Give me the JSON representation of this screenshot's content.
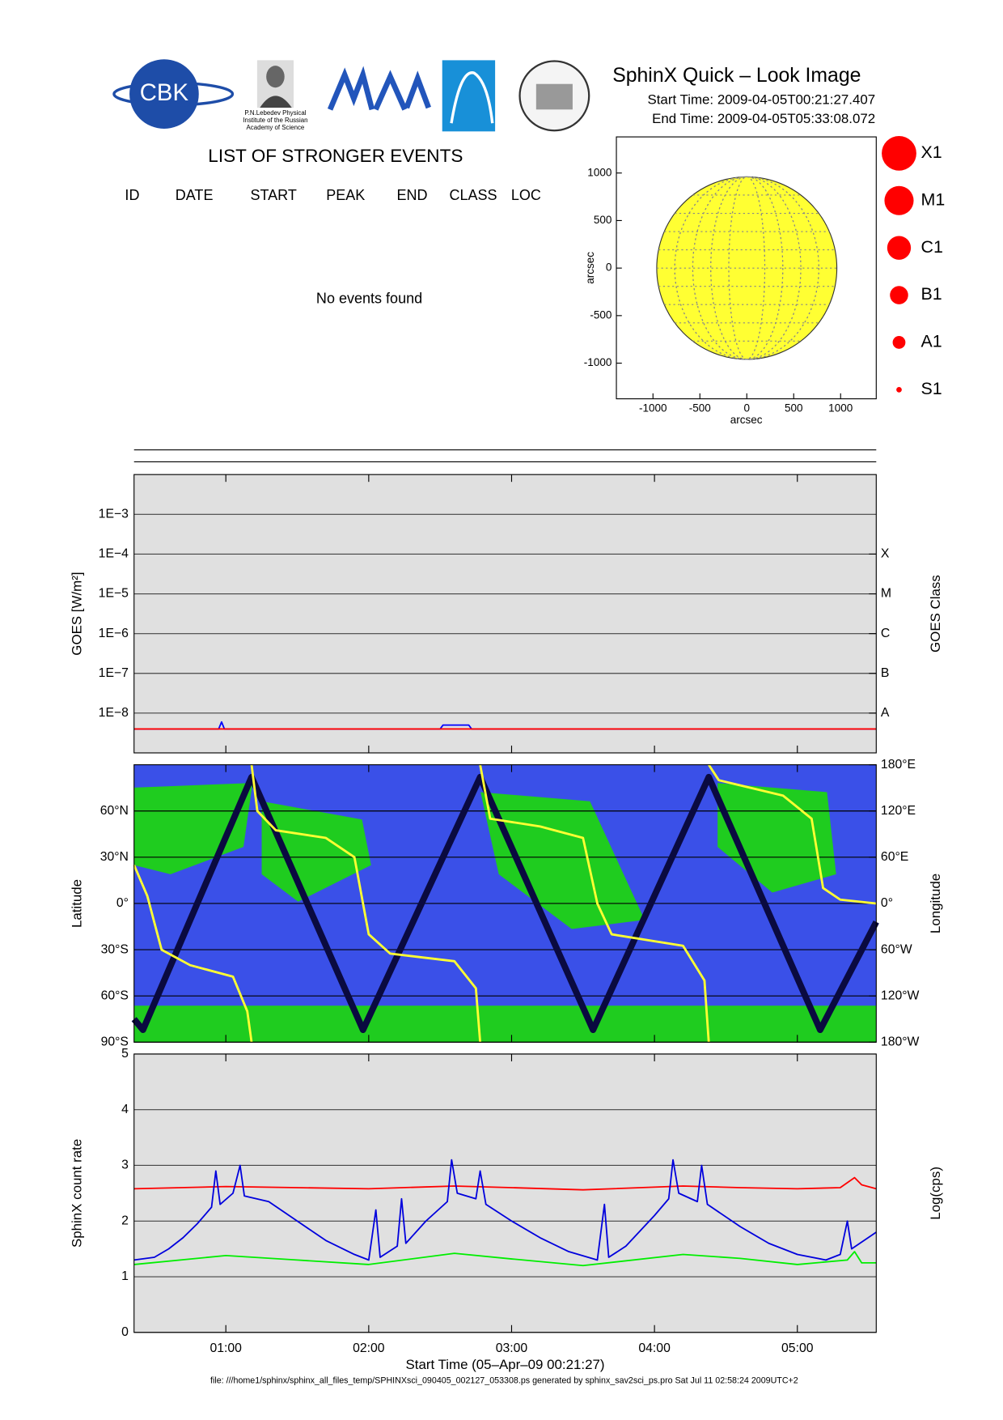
{
  "header": {
    "logo_text": "CBK",
    "institute": [
      "P.N.Lebedev Physical",
      "Institute of the Russian",
      "Academy of Science"
    ],
    "title": "SphinX Quick – Look Image",
    "start_time": "Start Time: 2009-04-05T00:21:27.407",
    "end_time": "End Time: 2009-04-05T05:33:08.072"
  },
  "events": {
    "title": "LIST OF STRONGER EVENTS",
    "columns": [
      "ID",
      "DATE",
      "START",
      "PEAK",
      "END",
      "CLASS",
      "LOC"
    ],
    "message": "No events found"
  },
  "chart_data": [
    {
      "type": "disk",
      "xlabel": "arcsec",
      "ylabel": "arcsec",
      "xlim": [
        -1390,
        1380
      ],
      "ylim": [
        -1375,
        1380
      ],
      "xticks": [
        -1000,
        -500,
        0,
        500,
        1000
      ],
      "yticks": [
        -1000,
        -500,
        0,
        500,
        1000
      ],
      "disk_radius": 960,
      "color": "#ffff33",
      "classes": [
        "X1",
        "M1",
        "C1",
        "B1",
        "A1",
        "S1"
      ],
      "class_color": "#ff0000"
    },
    {
      "type": "line",
      "log_y": true,
      "ylabel": "GOES [W/m²]",
      "y2label": "GOES Class",
      "grid": true,
      "xlim": [
        0.3575,
        5.5522
      ],
      "xticks": [
        1,
        2,
        3,
        4,
        5
      ],
      "ylim": [
        1e-09,
        0.01
      ],
      "yticks": [
        {
          "value": 1e-08,
          "label": "1E−8"
        },
        {
          "value": 1e-07,
          "label": "1E−7"
        },
        {
          "value": 1e-06,
          "label": "1E−6"
        },
        {
          "value": 1e-05,
          "label": "1E−5"
        },
        {
          "value": 0.0001,
          "label": "1E−4"
        },
        {
          "value": 0.001,
          "label": "1E−3"
        }
      ],
      "y2ticks": [
        {
          "value": 1e-08,
          "label": "A"
        },
        {
          "value": 1e-07,
          "label": "B"
        },
        {
          "value": 1e-06,
          "label": "C"
        },
        {
          "value": 1e-05,
          "label": "M"
        },
        {
          "value": 0.0001,
          "label": "X"
        }
      ],
      "series": [
        {
          "color": "#0000ff",
          "x": [
            0.3575,
            0.95,
            0.97,
            0.99,
            2.5,
            2.52,
            2.7,
            2.72,
            5.5522
          ],
          "values": [
            4e-09,
            4e-09,
            6e-09,
            4e-09,
            4e-09,
            5e-09,
            5e-09,
            4e-09,
            4e-09
          ]
        },
        {
          "color": "#ff0000",
          "x": [
            0.3575,
            5.5522
          ],
          "values": [
            4e-09,
            4e-09
          ]
        }
      ]
    },
    {
      "type": "map",
      "ylabel": "Latitude",
      "y2label": "Longitude",
      "xlim": [
        0.3575,
        5.5522
      ],
      "xticks": [
        1,
        2,
        3,
        4,
        5
      ],
      "ylim": [
        -90,
        90
      ],
      "yticks": [
        {
          "value": -90,
          "label": "90°S"
        },
        {
          "value": -60,
          "label": "60°S"
        },
        {
          "value": -30,
          "label": "30°S"
        },
        {
          "value": 0,
          "label": "0°"
        },
        {
          "value": 30,
          "label": "30°N"
        },
        {
          "value": 60,
          "label": "60°N"
        }
      ],
      "y2lim": [
        -180,
        180
      ],
      "y2ticks": [
        {
          "value": -180,
          "label": "180°W"
        },
        {
          "value": -120,
          "label": "120°W"
        },
        {
          "value": -60,
          "label": "60°W"
        },
        {
          "value": 0,
          "label": "0°"
        },
        {
          "value": 60,
          "label": "60°E"
        },
        {
          "value": 120,
          "label": "120°E"
        },
        {
          "value": 180,
          "label": "180°E"
        }
      ],
      "sea_color": "#3a50e8",
      "land_color": "#1fcc1f",
      "series": [
        {
          "color": "#0a0a40",
          "x": [
            0.3575,
            0.42,
            1.18,
            1.96,
            2.78,
            3.57,
            4.38,
            5.16,
            5.5522
          ],
          "values": [
            -75,
            -82,
            82,
            -82,
            82,
            -82,
            82,
            -82,
            -12
          ]
        },
        {
          "color": "#ffff33",
          "axis": "y2",
          "x": [
            0.3575,
            0.45,
            0.55,
            0.75,
            1.05,
            1.15,
            1.18,
            null,
            1.18,
            1.22,
            1.35,
            1.7,
            1.9,
            2.0,
            2.15,
            2.6,
            2.75,
            2.78,
            null,
            2.78,
            2.85,
            3.2,
            3.5,
            3.6,
            3.7,
            4.2,
            4.35,
            4.38,
            null,
            4.38,
            4.45,
            4.9,
            5.1,
            5.18,
            5.3,
            5.5522
          ],
          "values": [
            50,
            10,
            -60,
            -80,
            -95,
            -140,
            -180,
            null,
            180,
            120,
            95,
            85,
            60,
            -40,
            -65,
            -75,
            -110,
            -180,
            null,
            180,
            110,
            100,
            85,
            0,
            -40,
            -55,
            -100,
            -180,
            null,
            180,
            160,
            140,
            110,
            20,
            5,
            0
          ]
        }
      ]
    },
    {
      "type": "line",
      "ylabel": "SphinX count rate",
      "y2label": "Log(cps)",
      "xlabel": "Start Time (05–Apr–09 00:21:27)",
      "grid": true,
      "xlim": [
        0.3575,
        5.5522
      ],
      "xticks": [
        {
          "value": 1,
          "label": "01:00"
        },
        {
          "value": 2,
          "label": "02:00"
        },
        {
          "value": 3,
          "label": "03:00"
        },
        {
          "value": 4,
          "label": "04:00"
        },
        {
          "value": 5,
          "label": "05:00"
        }
      ],
      "ylim": [
        0,
        5
      ],
      "yticks": [
        0,
        1,
        2,
        3,
        4,
        5
      ],
      "series": [
        {
          "color": "#ff0000",
          "x": [
            0.3575,
            1.0,
            1.5,
            2.0,
            2.6,
            3.0,
            3.5,
            4.2,
            4.6,
            5.0,
            5.3,
            5.4,
            5.45,
            5.5522
          ],
          "values": [
            2.58,
            2.62,
            2.6,
            2.58,
            2.63,
            2.6,
            2.56,
            2.63,
            2.6,
            2.58,
            2.6,
            2.78,
            2.65,
            2.58
          ]
        },
        {
          "color": "#00ee00",
          "x": [
            0.3575,
            1.0,
            1.5,
            2.0,
            2.6,
            3.0,
            3.5,
            4.2,
            4.6,
            5.0,
            5.35,
            5.4,
            5.45,
            5.5522
          ],
          "values": [
            1.22,
            1.38,
            1.3,
            1.22,
            1.42,
            1.32,
            1.2,
            1.4,
            1.33,
            1.22,
            1.3,
            1.45,
            1.25,
            1.25
          ]
        },
        {
          "color": "#0000dd",
          "x": [
            0.3575,
            0.5,
            0.6,
            0.7,
            0.8,
            0.9,
            0.93,
            0.96,
            1.05,
            1.1,
            1.13,
            1.3,
            1.5,
            1.7,
            1.9,
            2.0,
            2.05,
            2.08,
            2.2,
            2.23,
            2.26,
            2.4,
            2.55,
            2.58,
            2.62,
            2.75,
            2.78,
            2.82,
            3.0,
            3.2,
            3.4,
            3.6,
            3.65,
            3.68,
            3.8,
            4.0,
            4.1,
            4.13,
            4.17,
            4.3,
            4.33,
            4.37,
            4.6,
            4.8,
            5.0,
            5.2,
            5.3,
            5.35,
            5.38,
            5.5522
          ],
          "values": [
            1.3,
            1.35,
            1.5,
            1.7,
            1.95,
            2.25,
            2.9,
            2.3,
            2.5,
            3.0,
            2.45,
            2.35,
            2.0,
            1.65,
            1.4,
            1.3,
            2.2,
            1.35,
            1.55,
            2.4,
            1.6,
            2.0,
            2.35,
            3.1,
            2.5,
            2.4,
            2.9,
            2.3,
            2.0,
            1.7,
            1.45,
            1.3,
            2.3,
            1.35,
            1.55,
            2.1,
            2.4,
            3.1,
            2.5,
            2.35,
            3.0,
            2.3,
            1.9,
            1.6,
            1.4,
            1.3,
            1.4,
            2.0,
            1.5,
            1.8
          ]
        }
      ]
    }
  ],
  "footer": {
    "file": "file: ///home1/sphinx/sphinx_all_files_temp/SPHINXsci_090405_002127_053308.ps generated by sphinx_sav2sci_ps.pro Sat Jul 11 02:58:24 2009UTC+2"
  }
}
